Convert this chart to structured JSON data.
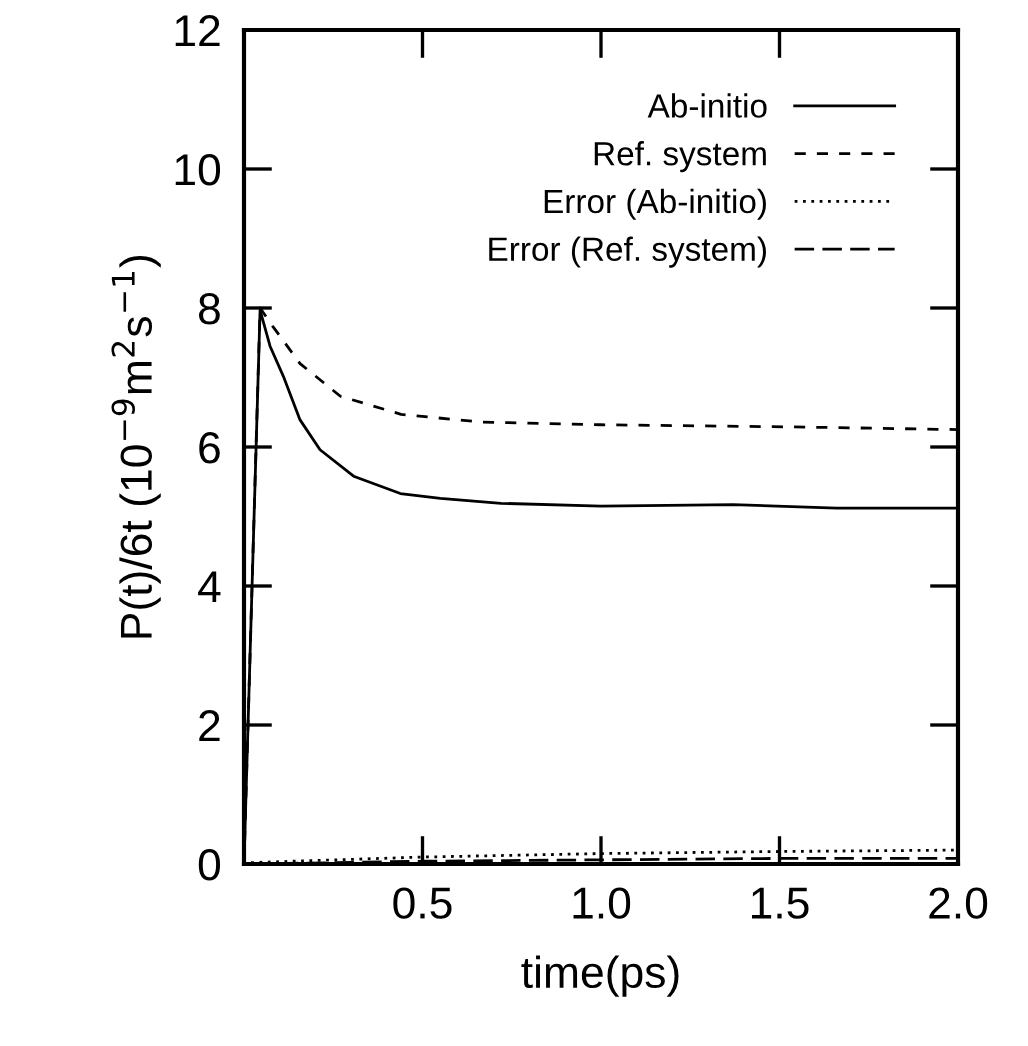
{
  "chart_data": {
    "type": "line",
    "xlabel": "time(ps)",
    "ylabel": "P(t)/6t (10$^{−9}$m$^{2}$s$^{−1}$)",
    "xlim": [
      0,
      2.0
    ],
    "ylim": [
      0,
      12
    ],
    "xticks": [
      {
        "value": 0,
        "label": null
      },
      {
        "value": 0.5,
        "label": "0.5"
      },
      {
        "value": 1.0,
        "label": "1.0"
      },
      {
        "value": 1.5,
        "label": "1.5"
      },
      {
        "value": 2.0,
        "label": "2.0"
      }
    ],
    "yticks": [
      0,
      2,
      4,
      6,
      8,
      10,
      12
    ],
    "grid": false,
    "legend": "top right",
    "marker": "none",
    "series": [
      {
        "name": "Ab-initio",
        "color": "#000000",
        "line_style": "solid",
        "x": [
          0,
          0.045,
          0.073,
          0.11,
          0.157,
          0.213,
          0.307,
          0.438,
          0.55,
          0.72,
          1.0,
          1.37,
          1.66,
          2.0
        ],
        "values": [
          0,
          7.97,
          7.45,
          7.02,
          6.39,
          5.96,
          5.58,
          5.33,
          5.26,
          5.19,
          5.15,
          5.17,
          5.12,
          5.12
        ]
      },
      {
        "name": "Ref. system",
        "color": "#000000",
        "line_style": "dashed",
        "x": [
          0,
          0.045,
          0.08,
          0.157,
          0.27,
          0.44,
          0.66,
          1.0,
          1.53,
          2.0
        ],
        "values": [
          0,
          8.0,
          7.74,
          7.2,
          6.73,
          6.47,
          6.36,
          6.32,
          6.29,
          6.25
        ]
      },
      {
        "name": "Error (Ab-initio)",
        "color": "#000000",
        "line_style": "dotted",
        "x": [
          0.02,
          0.5,
          1.0,
          1.5,
          2.0
        ],
        "values": [
          0.02,
          0.1,
          0.15,
          0.18,
          0.2
        ]
      },
      {
        "name": "Error (Ref. system)",
        "color": "#000000",
        "line_style": "dashed",
        "x": [
          0.02,
          0.5,
          1.0,
          1.5,
          2.0
        ],
        "values": [
          0.0,
          0.04,
          0.06,
          0.08,
          0.08
        ]
      }
    ]
  }
}
